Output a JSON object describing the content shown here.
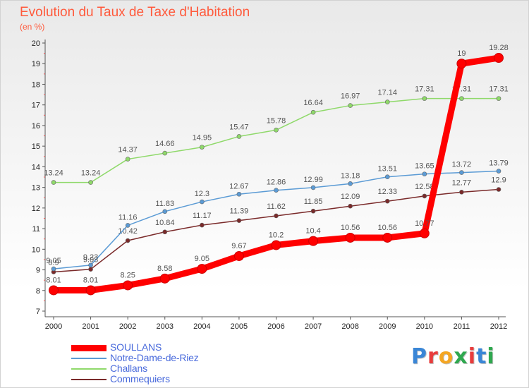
{
  "chart_data": {
    "type": "line",
    "title": "Evolution du Taux de Taxe d'Habitation",
    "subtitle": "(en %)",
    "x": [
      "2000",
      "2001",
      "2002",
      "2003",
      "2004",
      "2005",
      "2006",
      "2007",
      "2008",
      "2009",
      "2010",
      "2011",
      "2012"
    ],
    "ylim": [
      7,
      20
    ],
    "yticks": [
      "7",
      "8",
      "9",
      "10",
      "11",
      "12",
      "13",
      "14",
      "15",
      "16",
      "17",
      "18",
      "19",
      "20"
    ],
    "grid": false,
    "legend_position": "bottom-left",
    "series": [
      {
        "name": "SOULLANS",
        "color": "#ff0000",
        "values": [
          8.01,
          8.01,
          8.25,
          8.58,
          9.05,
          9.67,
          10.2,
          10.4,
          10.56,
          10.56,
          10.77,
          19,
          19.28
        ],
        "labels": [
          "8.01",
          "8.01",
          "8.25",
          "8.58",
          "9.05",
          "9.67",
          "10.2",
          "10.4",
          "10.56",
          "10.56",
          "10.77",
          "19",
          "19.28"
        ]
      },
      {
        "name": "Notre-Dame-de-Riez",
        "color": "#5b9bd5",
        "values": [
          9.05,
          9.23,
          11.16,
          11.83,
          12.3,
          12.67,
          12.86,
          12.99,
          13.18,
          13.51,
          13.65,
          13.72,
          13.79
        ],
        "labels": [
          "9.05",
          "9.23",
          "11.16",
          "11.83",
          "12.3",
          "12.67",
          "12.86",
          "12.99",
          "13.18",
          "13.51",
          "13.65",
          "13.72",
          "13.79"
        ]
      },
      {
        "name": "Challans",
        "color": "#8fd96a",
        "values": [
          13.24,
          13.24,
          14.37,
          14.66,
          14.95,
          15.47,
          15.78,
          16.64,
          16.97,
          17.14,
          17.31,
          17.31,
          17.31
        ],
        "labels": [
          "13.24",
          "13.24",
          "14.37",
          "14.66",
          "14.95",
          "15.47",
          "15.78",
          "16.64",
          "16.97",
          "17.14",
          "17.31",
          "17.31",
          "17.31"
        ]
      },
      {
        "name": "Commequiers",
        "color": "#7a2a2a",
        "values": [
          8.9,
          9.03,
          10.42,
          10.84,
          11.17,
          11.39,
          11.62,
          11.85,
          12.09,
          12.33,
          12.58,
          12.77,
          12.9
        ],
        "labels": [
          "8.9",
          "9.03",
          "10.42",
          "10.84",
          "11.17",
          "11.39",
          "11.62",
          "11.85",
          "12.09",
          "12.33",
          "12.58",
          "12.77",
          "12.9"
        ]
      }
    ]
  },
  "logo": {
    "letters": [
      "P",
      "r",
      "o",
      "x",
      "i",
      "t",
      "i"
    ],
    "colors": [
      "#3a86d6",
      "#e83c3c",
      "#f4a623",
      "#2fa84f",
      "#e83c3c",
      "#3a86d6",
      "#2fa84f"
    ]
  }
}
